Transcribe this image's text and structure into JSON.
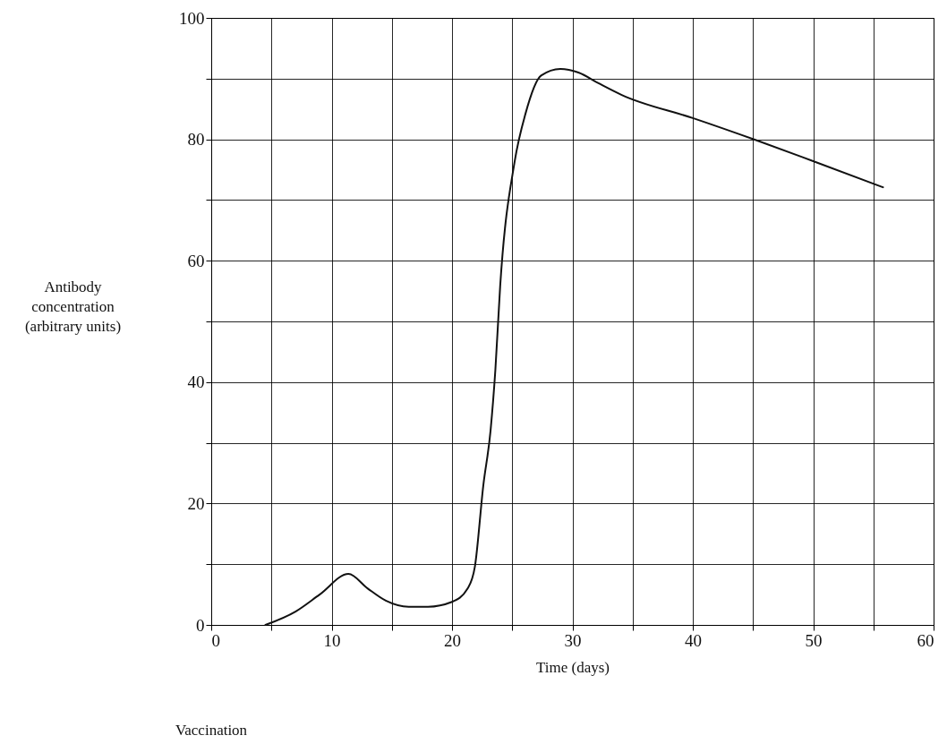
{
  "chart_data": {
    "type": "line",
    "xlabel": "Time (days)",
    "ylabel": "Antibody\nconcentration\n(arbitrary units)",
    "x": [
      4.5,
      7,
      9,
      11.4,
      13,
      14.5,
      16.4,
      18,
      20,
      21.3,
      21.9,
      22.6,
      23.2,
      23.6,
      24.0,
      25.2,
      26.1,
      27.4,
      29.0,
      30.5,
      32.2,
      34.1,
      40,
      45.2,
      50,
      55.8
    ],
    "series": [
      {
        "color": "#111111",
        "values": [
          0,
          2.2,
          5,
          8.4,
          6,
          4,
          3,
          3,
          3.8,
          6,
          9.6,
          23,
          32,
          42,
          55.8,
          76.3,
          84.2,
          90.5,
          91.6,
          91,
          89.2,
          87.3,
          83.5,
          79.9,
          76.4,
          72.1
        ]
      }
    ],
    "xlim": [
      0,
      60
    ],
    "ylim": [
      0,
      100
    ],
    "xticks": [
      0,
      {
        "value": 5,
        "label": null
      },
      10,
      {
        "value": 15,
        "label": null
      },
      20,
      {
        "value": 25,
        "label": null
      },
      30,
      {
        "value": 35,
        "label": null
      },
      40,
      {
        "value": 45,
        "label": null
      },
      50,
      {
        "value": 55,
        "label": null
      },
      60
    ],
    "yticks": [
      0,
      {
        "value": 10,
        "label": null
      },
      20,
      {
        "value": 30,
        "label": null
      },
      40,
      {
        "value": 50,
        "label": null
      },
      60,
      {
        "value": 70,
        "label": null
      },
      80,
      {
        "value": 90,
        "label": null
      },
      100
    ],
    "grid": true,
    "marker": "none",
    "line_style": "solid",
    "annotations": [
      "Vaccination"
    ]
  }
}
